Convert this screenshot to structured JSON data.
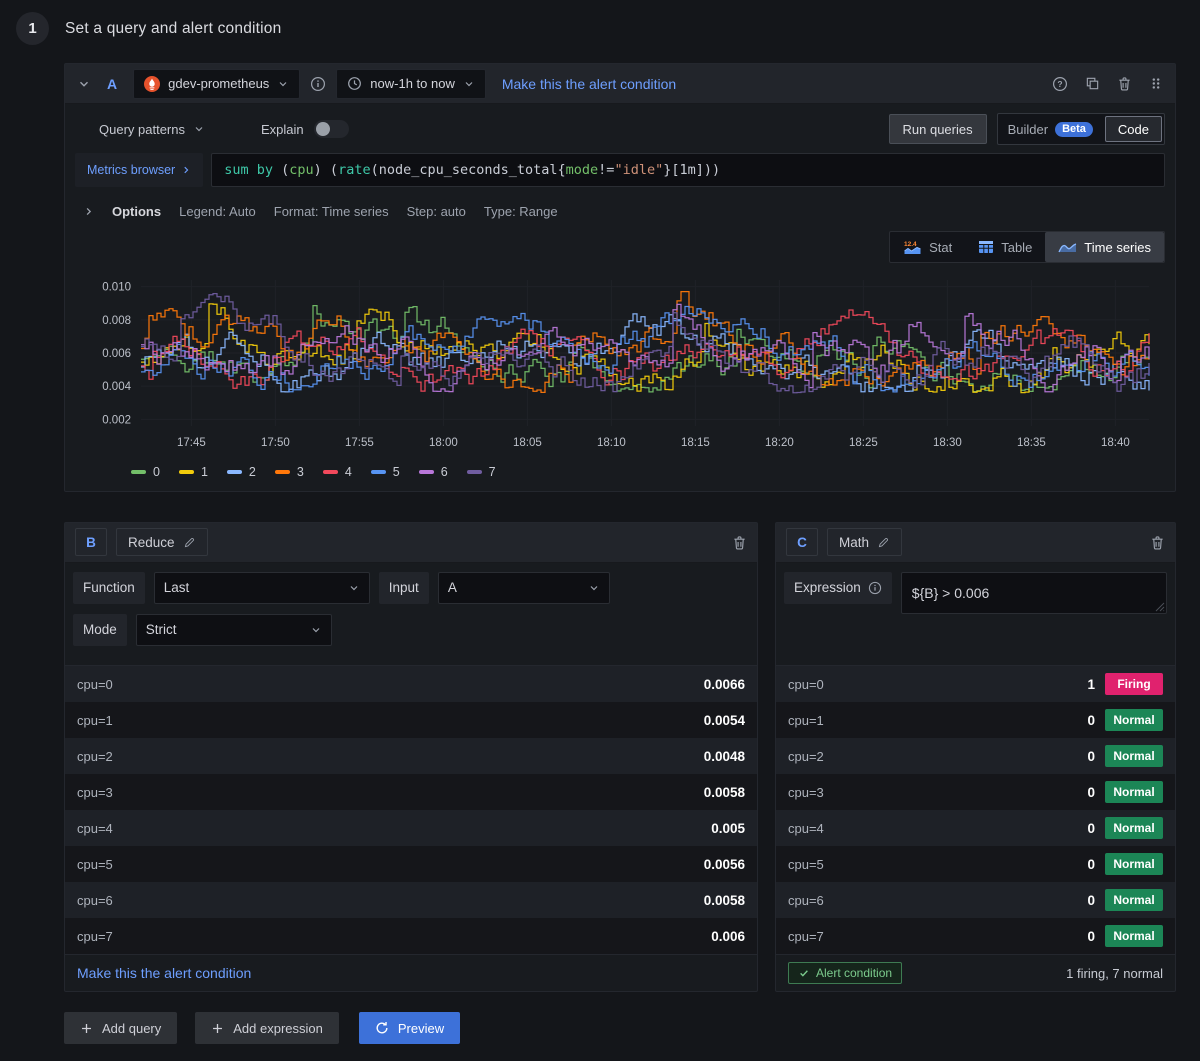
{
  "page": {
    "step_number": "1",
    "title": "Set a query and alert condition"
  },
  "query_panel": {
    "ref": "A",
    "datasource": "gdev-prometheus",
    "time_range": "now-1h to now",
    "alert_link": "Make this the alert condition",
    "header_icons": [
      "help-icon",
      "copy-icon",
      "trash-icon",
      "drag-handle-icon"
    ],
    "toolbar": {
      "query_patterns": "Query patterns",
      "explain": "Explain",
      "run_queries": "Run queries",
      "builder": "Builder",
      "beta": "Beta",
      "code": "Code"
    },
    "metrics_browser": "Metrics browser",
    "query_tokens": [
      {
        "t": "sum",
        "c": "kw"
      },
      {
        "t": " ",
        "c": "pl"
      },
      {
        "t": "by",
        "c": "kw"
      },
      {
        "t": " (",
        "c": "pl"
      },
      {
        "t": "cpu",
        "c": "lb"
      },
      {
        "t": ") (",
        "c": "pl"
      },
      {
        "t": "rate",
        "c": "kw"
      },
      {
        "t": "(node_cpu_seconds_total{",
        "c": "pl"
      },
      {
        "t": "mode",
        "c": "lb"
      },
      {
        "t": "!=",
        "c": "pl"
      },
      {
        "t": "\"idle\"",
        "c": "st"
      },
      {
        "t": "}[1m]))",
        "c": "pl"
      }
    ],
    "token_colors": {
      "kw": "#3EC8A8",
      "lb": "#73BF69",
      "st": "#CE9178",
      "pl": "#C9CDD6"
    },
    "options": {
      "label": "Options",
      "items": [
        "Legend: Auto",
        "Format: Time series",
        "Step: auto",
        "Type: Range"
      ]
    },
    "viz_tabs": [
      {
        "label": "Stat",
        "active": false
      },
      {
        "label": "Table",
        "active": false
      },
      {
        "label": "Time series",
        "active": true
      }
    ]
  },
  "chart_data": {
    "type": "line",
    "style": "stepped noisy multi-series lines",
    "x_ticks": [
      "17:45",
      "17:50",
      "17:55",
      "18:00",
      "18:05",
      "18:10",
      "18:15",
      "18:20",
      "18:25",
      "18:30",
      "18:35",
      "18:40"
    ],
    "y_ticks": [
      {
        "label": "0.010",
        "value": 0.01
      },
      {
        "label": "0.008",
        "value": 0.008
      },
      {
        "label": "0.006",
        "value": 0.006
      },
      {
        "label": "0.004",
        "value": 0.004
      },
      {
        "label": "0.002",
        "value": 0.002
      }
    ],
    "ylim": [
      0.0016,
      0.0104
    ],
    "value_band": [
      0.004,
      0.0097
    ],
    "seed": 11,
    "series": [
      {
        "name": "0",
        "color": "#73BF69"
      },
      {
        "name": "1",
        "color": "#F2CC0C"
      },
      {
        "name": "2",
        "color": "#8AB8FF"
      },
      {
        "name": "3",
        "color": "#FF780A"
      },
      {
        "name": "4",
        "color": "#F2495C"
      },
      {
        "name": "5",
        "color": "#5794F2"
      },
      {
        "name": "6",
        "color": "#B877D9"
      },
      {
        "name": "7",
        "color": "#705DA0"
      }
    ],
    "legend_position": "bottom-left",
    "grid": true
  },
  "reduce_panel": {
    "ref": "B",
    "type_label": "Reduce",
    "function_label": "Function",
    "function_value": "Last",
    "input_label": "Input",
    "input_value": "A",
    "mode_label": "Mode",
    "mode_value": "Strict",
    "rows": [
      {
        "label": "cpu=0",
        "value": "0.0066"
      },
      {
        "label": "cpu=1",
        "value": "0.0054"
      },
      {
        "label": "cpu=2",
        "value": "0.0048"
      },
      {
        "label": "cpu=3",
        "value": "0.0058"
      },
      {
        "label": "cpu=4",
        "value": "0.005"
      },
      {
        "label": "cpu=5",
        "value": "0.0056"
      },
      {
        "label": "cpu=6",
        "value": "0.0058"
      },
      {
        "label": "cpu=7",
        "value": "0.006"
      }
    ],
    "footer_link": "Make this the alert condition"
  },
  "math_panel": {
    "ref": "C",
    "type_label": "Math",
    "expression_label": "Expression",
    "expression": "${B} > 0.006",
    "rows": [
      {
        "label": "cpu=0",
        "value": "1",
        "state": "Firing"
      },
      {
        "label": "cpu=1",
        "value": "0",
        "state": "Normal"
      },
      {
        "label": "cpu=2",
        "value": "0",
        "state": "Normal"
      },
      {
        "label": "cpu=3",
        "value": "0",
        "state": "Normal"
      },
      {
        "label": "cpu=4",
        "value": "0",
        "state": "Normal"
      },
      {
        "label": "cpu=5",
        "value": "0",
        "state": "Normal"
      },
      {
        "label": "cpu=6",
        "value": "0",
        "state": "Normal"
      },
      {
        "label": "cpu=7",
        "value": "0",
        "state": "Normal"
      }
    ],
    "state_colors": {
      "Firing": "#E0226E",
      "Normal": "#1C8656"
    },
    "footer_badge": "Alert condition",
    "footer_summary": "1 firing, 7 normal"
  },
  "actions": {
    "add_query": "Add query",
    "add_expression": "Add expression",
    "preview": "Preview"
  },
  "colors": {
    "primary_blue": "#3D71D9",
    "link_blue": "#6E9FFF",
    "panel_bg": "#181B1F",
    "page_bg": "#14161A"
  }
}
